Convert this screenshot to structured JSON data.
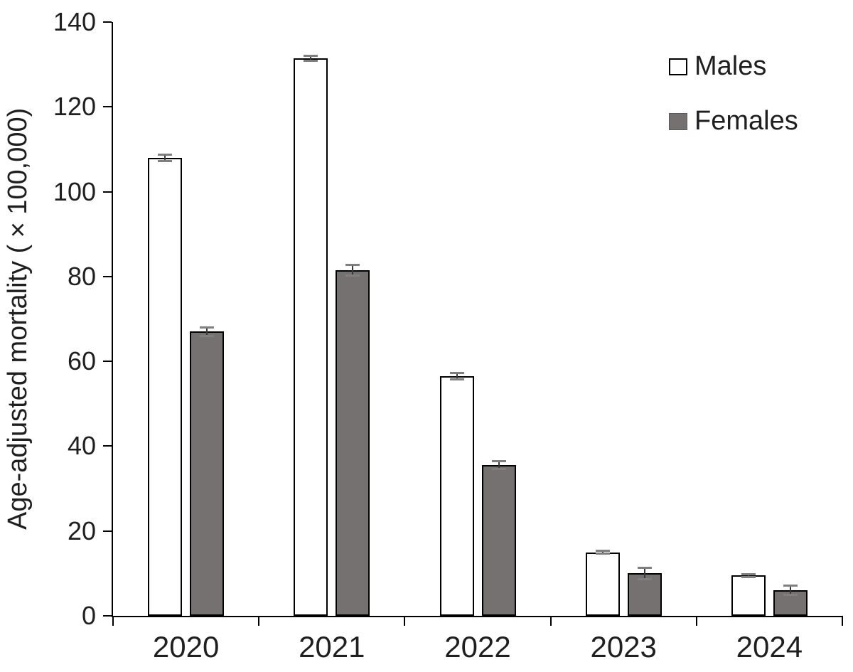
{
  "chart_data": {
    "type": "bar",
    "title": "",
    "xlabel": "",
    "ylabel": "Age-adjusted mortality (×100,000)",
    "categories": [
      "2020",
      "2021",
      "2022",
      "2023",
      "2024"
    ],
    "series": [
      {
        "name": "Males",
        "fill": "#ffffff",
        "border": "#000000",
        "values": [
          108,
          131.5,
          56.5,
          15,
          9.5
        ],
        "errors": [
          0.8,
          0.7,
          0.8,
          0.4,
          0.4
        ]
      },
      {
        "name": "Females",
        "fill": "#767171",
        "border": "#000000",
        "values": [
          67,
          81.5,
          35.5,
          10,
          6
        ],
        "errors": [
          1.1,
          1.4,
          1.0,
          1.4,
          1.2
        ]
      }
    ],
    "ylim": [
      0,
      140
    ],
    "ytick_step": 20,
    "yticks": [
      "0",
      "20",
      "40",
      "60",
      "80",
      "100",
      "120",
      "140"
    ],
    "grid": false,
    "error_bars": true,
    "legend_position": "top-right"
  },
  "colors": {
    "axis": "#000000",
    "text": "#1f1f1f",
    "error_line": "#3a3a3a",
    "error_cap": "#7f7f7f",
    "female_fill": "#767171",
    "male_fill": "#ffffff"
  }
}
